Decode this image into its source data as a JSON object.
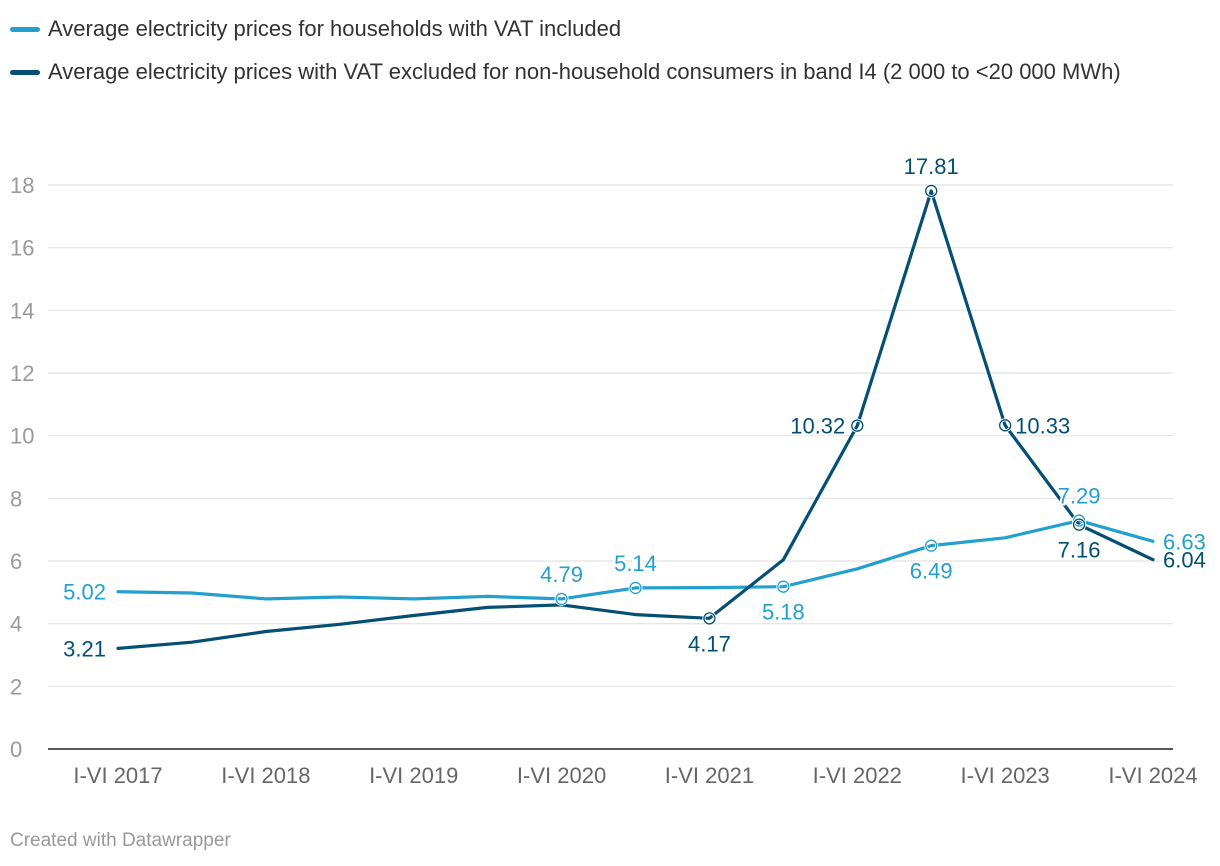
{
  "chart_data": {
    "type": "line",
    "legend": [
      {
        "name": "Average electricity prices for households with VAT included",
        "color": "#23a0cd"
      },
      {
        "name": "Average electricity prices with VAT excluded for non-household consumers in band I4 (2 000 to <20 000 MWh)",
        "color": "#044f73"
      }
    ],
    "x_labels": [
      "I-VI 2017",
      "I-VI 2018",
      "I-VI 2019",
      "I-VI 2020",
      "I-VI 2021",
      "I-VI 2022",
      "I-VI 2023",
      "I-VI 2024"
    ],
    "y_ticks": [
      0,
      2,
      4,
      6,
      8,
      10,
      12,
      14,
      16,
      18
    ],
    "ylim": [
      0,
      18
    ],
    "grid": true,
    "series": [
      {
        "name": "Average electricity prices for households with VAT included",
        "color": "#23a0cd",
        "values": [
          5.02,
          4.98,
          4.79,
          4.85,
          4.79,
          4.87,
          4.79,
          5.14,
          5.15,
          5.18,
          5.75,
          6.49,
          6.74,
          7.29,
          6.63
        ],
        "labels": [
          {
            "i": 0,
            "text": "5.02",
            "pos": "left"
          },
          {
            "i": 6,
            "text": "4.79",
            "pos": "above",
            "marker": true
          },
          {
            "i": 7,
            "text": "5.14",
            "pos": "above",
            "marker": true
          },
          {
            "i": 9,
            "text": "5.18",
            "pos": "below",
            "marker": true
          },
          {
            "i": 11,
            "text": "6.49",
            "pos": "below",
            "marker": true
          },
          {
            "i": 13,
            "text": "7.29",
            "pos": "above",
            "marker": true
          },
          {
            "i": 14,
            "text": "6.63",
            "pos": "right"
          }
        ]
      },
      {
        "name": "Average electricity prices with VAT excluded for non-household consumers in band I4 (2 000 to <20 000 MWh)",
        "color": "#044f73",
        "values": [
          3.21,
          3.41,
          3.75,
          3.98,
          4.26,
          4.52,
          4.6,
          4.29,
          4.17,
          6.04,
          10.32,
          17.81,
          10.33,
          7.16,
          6.04
        ],
        "labels": [
          {
            "i": 0,
            "text": "3.21",
            "pos": "left"
          },
          {
            "i": 8,
            "text": "4.17",
            "pos": "below",
            "marker": true
          },
          {
            "i": 10,
            "text": "10.32",
            "pos": "left",
            "marker": true
          },
          {
            "i": 11,
            "text": "17.81",
            "pos": "above",
            "marker": true
          },
          {
            "i": 12,
            "text": "10.33",
            "pos": "right",
            "marker": true
          },
          {
            "i": 13,
            "text": "7.16",
            "pos": "below",
            "marker": true
          },
          {
            "i": 14,
            "text": "6.04",
            "pos": "right"
          }
        ]
      }
    ]
  },
  "footer": "Created with Datawrapper"
}
